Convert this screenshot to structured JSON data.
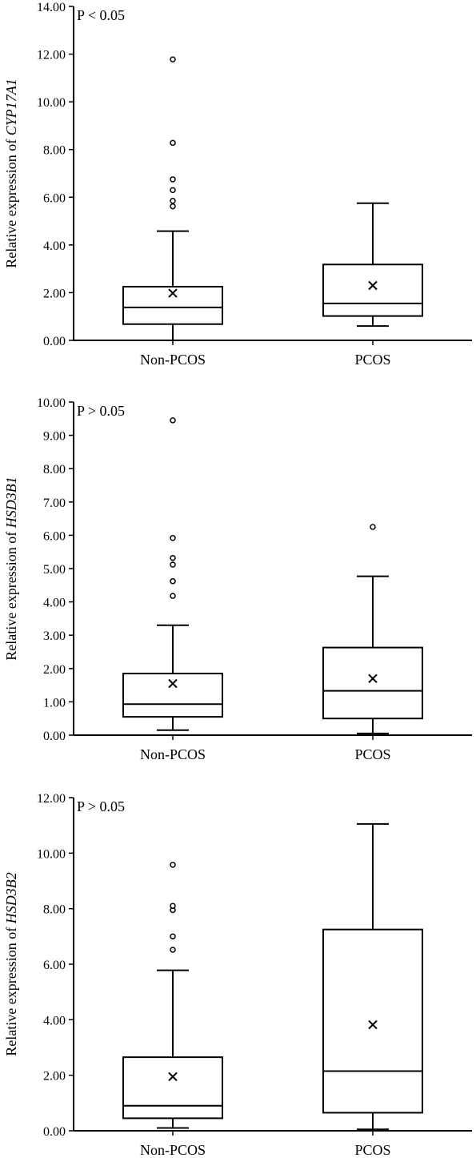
{
  "chart_data": [
    {
      "type": "boxplot",
      "pvalue": "P < 0.05",
      "ylabel_prefix": "Relative expression of ",
      "ylabel_gene": "CYP17A1",
      "ylim": [
        0,
        14
      ],
      "yticks": [
        "0.00",
        "2.00",
        "4.00",
        "6.00",
        "8.00",
        "10.00",
        "12.00",
        "14.00"
      ],
      "categories": [
        "Non-PCOS",
        "PCOS"
      ],
      "boxes": [
        {
          "whisker_low": 0.0,
          "q1": 0.68,
          "median": 1.38,
          "q3": 2.25,
          "whisker_high": 4.58,
          "mean": 1.98,
          "outliers": [
            5.62,
            5.85,
            6.3,
            6.75,
            8.28,
            11.78
          ]
        },
        {
          "whisker_low": 0.6,
          "q1": 1.02,
          "median": 1.55,
          "q3": 3.18,
          "whisker_high": 5.75,
          "mean": 2.3,
          "outliers": []
        }
      ]
    },
    {
      "type": "boxplot",
      "pvalue": "P > 0.05",
      "ylabel_prefix": "Relative expression of ",
      "ylabel_gene": "HSD3B1",
      "ylim": [
        0,
        10
      ],
      "yticks": [
        "0.00",
        "1.00",
        "2.00",
        "3.00",
        "4.00",
        "5.00",
        "6.00",
        "7.00",
        "8.00",
        "9.00",
        "10.00"
      ],
      "categories": [
        "Non-PCOS",
        "PCOS"
      ],
      "boxes": [
        {
          "whisker_low": 0.15,
          "q1": 0.55,
          "median": 0.93,
          "q3": 1.85,
          "whisker_high": 3.3,
          "mean": 1.55,
          "outliers": [
            4.18,
            4.62,
            5.12,
            5.32,
            5.92,
            9.45
          ]
        },
        {
          "whisker_low": 0.05,
          "q1": 0.5,
          "median": 1.33,
          "q3": 2.63,
          "whisker_high": 4.77,
          "mean": 1.7,
          "outliers": [
            6.25
          ]
        }
      ]
    },
    {
      "type": "boxplot",
      "pvalue": "P > 0.05",
      "ylabel_prefix": "Relative expression of ",
      "ylabel_gene": "HSD3B2",
      "ylim": [
        0,
        12
      ],
      "yticks": [
        "0.00",
        "2.00",
        "4.00",
        "6.00",
        "8.00",
        "10.00",
        "12.00"
      ],
      "categories": [
        "Non-PCOS",
        "PCOS"
      ],
      "boxes": [
        {
          "whisker_low": 0.1,
          "q1": 0.45,
          "median": 0.9,
          "q3": 2.65,
          "whisker_high": 5.78,
          "mean": 1.95,
          "outliers": [
            6.52,
            7.0,
            7.95,
            8.1,
            9.58
          ]
        },
        {
          "whisker_low": 0.05,
          "q1": 0.65,
          "median": 2.15,
          "q3": 7.25,
          "whisker_high": 11.05,
          "mean": 3.82,
          "outliers": []
        }
      ]
    }
  ]
}
